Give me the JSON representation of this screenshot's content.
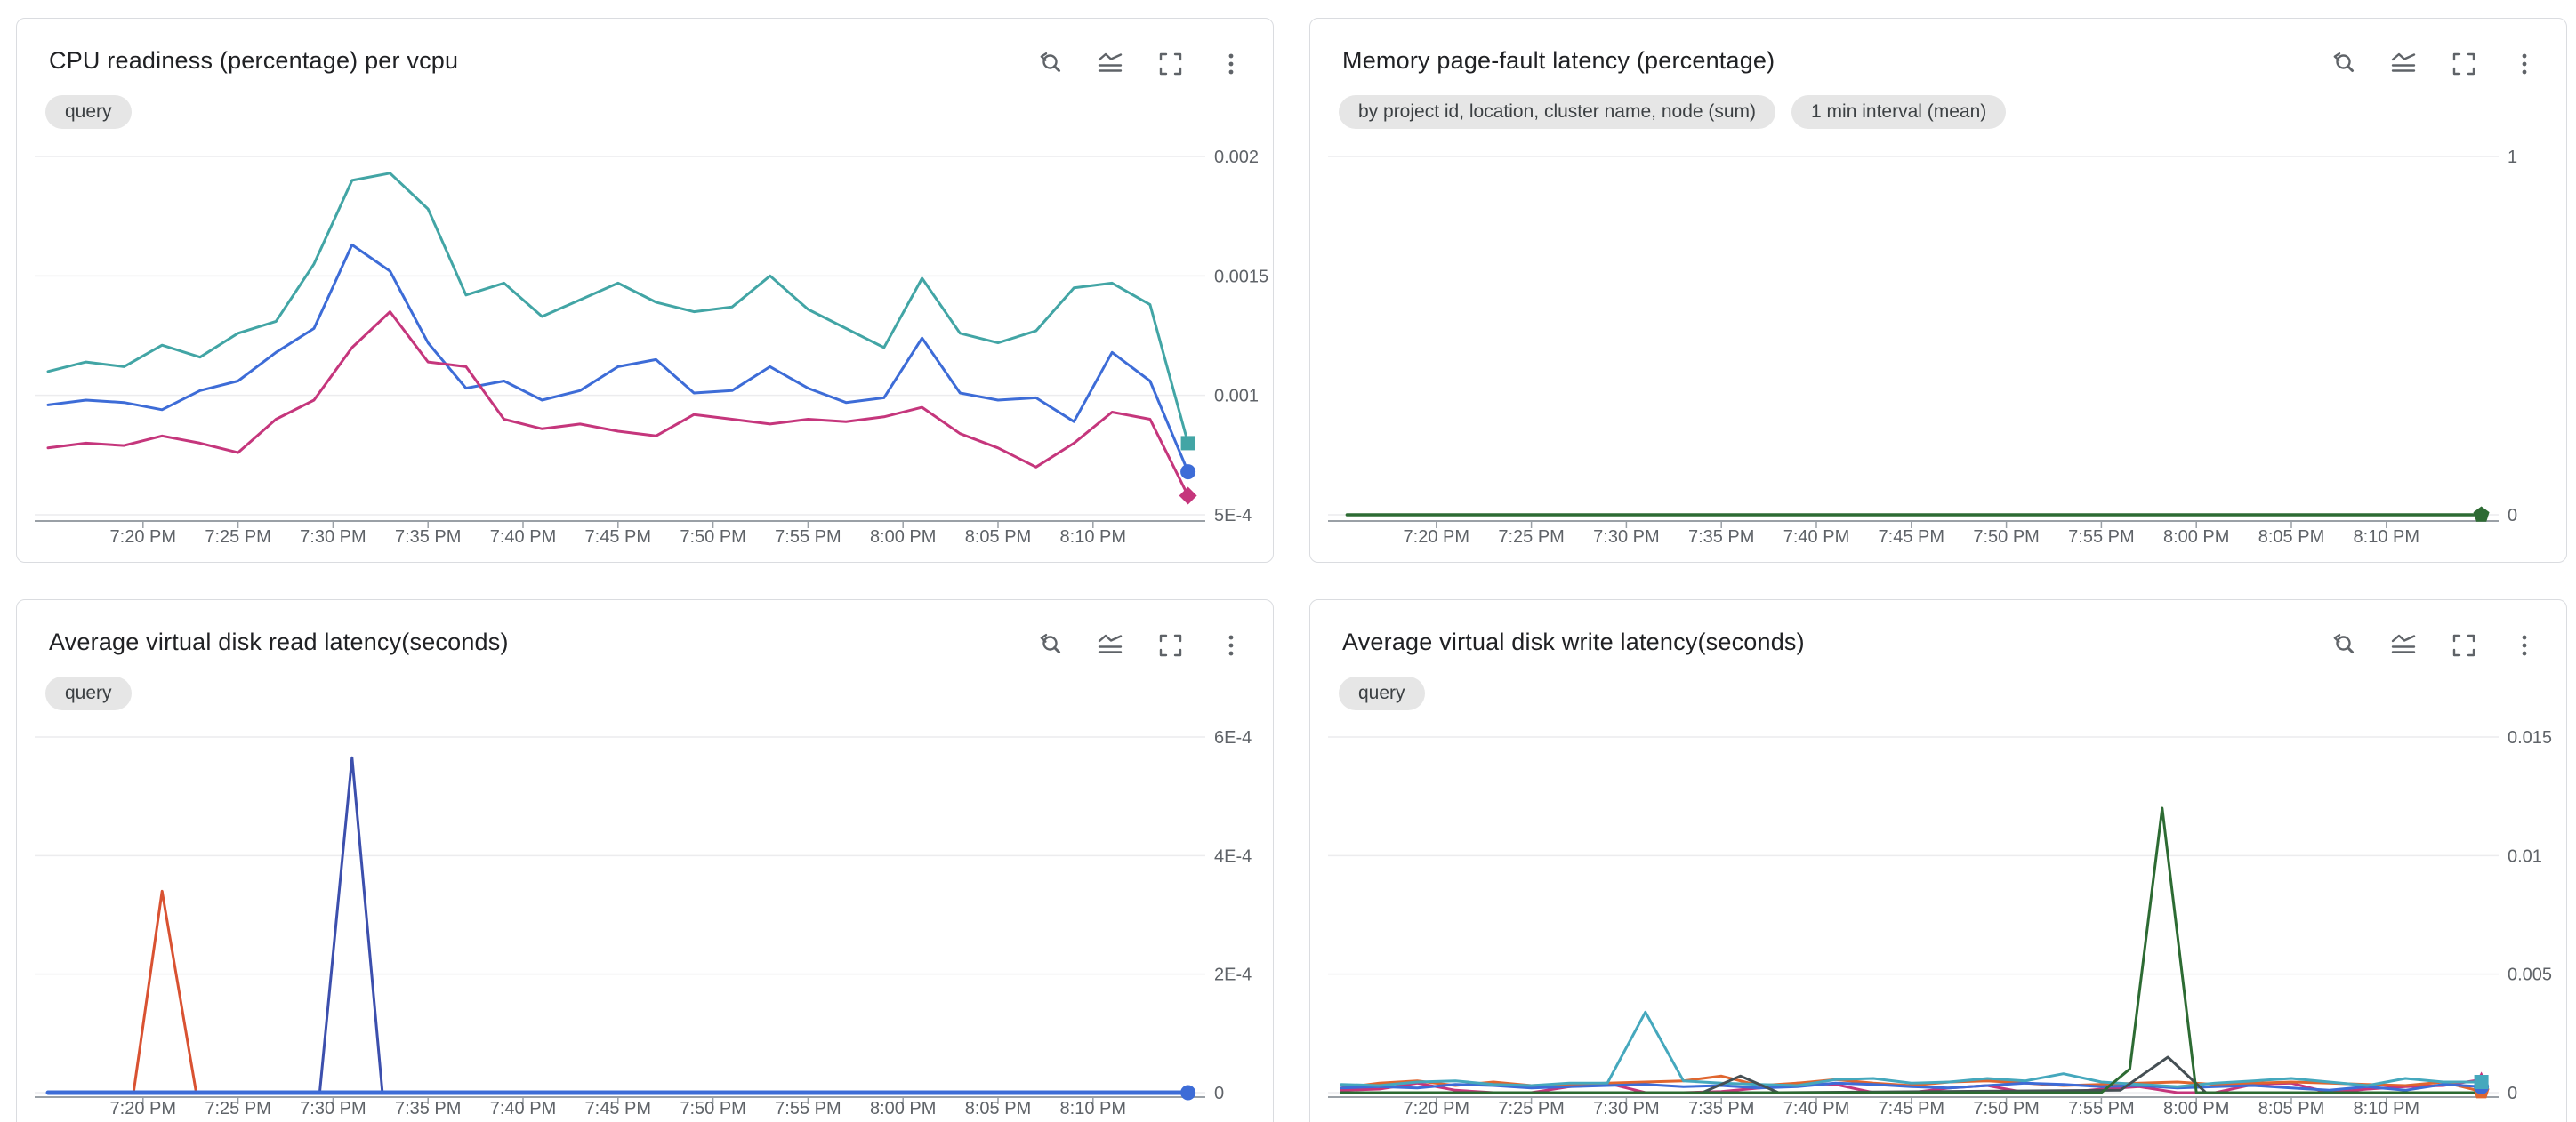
{
  "panels": [
    {
      "title": "CPU readiness (percentage) per vcpu",
      "chips": [
        "query"
      ]
    },
    {
      "title": "Memory page-fault latency (percentage)",
      "chips": [
        "by project id, location, cluster name, node (sum)",
        "1 min interval (mean)"
      ]
    },
    {
      "title": "Average virtual disk read latency(seconds)",
      "chips": [
        "query"
      ]
    },
    {
      "title": "Average virtual disk write latency(seconds)",
      "chips": [
        "query"
      ]
    }
  ],
  "toolbar": {
    "icons": [
      "zoom-reset",
      "chart-type",
      "fullscreen",
      "more-options"
    ]
  },
  "colors": {
    "card_border": "#dadce0",
    "chip_background": "#e6e6e6",
    "axis_text": "#5f6368",
    "gridline": "#ececee",
    "axis_line": "#9aa0a6",
    "title_text": "#202124"
  },
  "chart_data": [
    {
      "type": "line",
      "title": "CPU readiness (percentage) per vcpu",
      "x_tick_labels": [
        "7:20 PM",
        "7:25 PM",
        "7:30 PM",
        "7:35 PM",
        "7:40 PM",
        "7:45 PM",
        "7:50 PM",
        "7:55 PM",
        "8:00 PM",
        "8:05 PM",
        "8:10 PM"
      ],
      "x_tick_minutes": [
        5,
        10,
        15,
        20,
        25,
        30,
        35,
        40,
        45,
        50,
        55
      ],
      "x_range_minutes": [
        0,
        60
      ],
      "y_ticks": [
        {
          "label": "0.002",
          "value": 0.002
        },
        {
          "label": "0.0015",
          "value": 0.0015
        },
        {
          "label": "0.001",
          "value": 0.001
        },
        {
          "label": "5E-4",
          "value": 0.0005
        }
      ],
      "y_grid_top": 0.002,
      "y_grid_bottom": 0.0005,
      "series": [
        {
          "name": "series-1-teal",
          "color": "#42a5a5",
          "width": 3,
          "marker": "square",
          "x_step_minutes": 2,
          "y": [
            0.0011,
            0.00114,
            0.00112,
            0.00121,
            0.00116,
            0.00126,
            0.00131,
            0.00155,
            0.0019,
            0.00193,
            0.00178,
            0.00142,
            0.00147,
            0.00133,
            0.0014,
            0.00147,
            0.00139,
            0.00135,
            0.00137,
            0.0015,
            0.00136,
            0.00128,
            0.0012,
            0.00149,
            0.00126,
            0.00122,
            0.00127,
            0.00145,
            0.00147,
            0.00138,
            0.0008
          ]
        },
        {
          "name": "series-2-blue",
          "color": "#3d6cd7",
          "width": 3,
          "marker": "circle",
          "x_step_minutes": 2,
          "y": [
            0.00096,
            0.00098,
            0.00097,
            0.00094,
            0.00102,
            0.00106,
            0.00118,
            0.00128,
            0.00163,
            0.00152,
            0.00122,
            0.00103,
            0.00106,
            0.00098,
            0.00102,
            0.00112,
            0.00115,
            0.00101,
            0.00102,
            0.00112,
            0.00103,
            0.00097,
            0.00099,
            0.00124,
            0.00101,
            0.00098,
            0.00099,
            0.00089,
            0.00118,
            0.00106,
            0.00068
          ]
        },
        {
          "name": "series-3-magenta",
          "color": "#c5367c",
          "width": 3,
          "marker": "diamond",
          "x_step_minutes": 2,
          "y": [
            0.00078,
            0.0008,
            0.00079,
            0.00083,
            0.0008,
            0.00076,
            0.0009,
            0.00098,
            0.0012,
            0.00135,
            0.00114,
            0.00112,
            0.0009,
            0.00086,
            0.00088,
            0.00085,
            0.00083,
            0.00092,
            0.0009,
            0.00088,
            0.0009,
            0.00089,
            0.00091,
            0.00095,
            0.00084,
            0.00078,
            0.0007,
            0.0008,
            0.00093,
            0.0009,
            0.00058
          ]
        }
      ]
    },
    {
      "type": "line",
      "title": "Memory page-fault latency (percentage)",
      "x_tick_labels": [
        "7:20 PM",
        "7:25 PM",
        "7:30 PM",
        "7:35 PM",
        "7:40 PM",
        "7:45 PM",
        "7:50 PM",
        "7:55 PM",
        "8:00 PM",
        "8:05 PM",
        "8:10 PM"
      ],
      "x_tick_minutes": [
        5,
        10,
        15,
        20,
        25,
        30,
        35,
        40,
        45,
        50,
        55
      ],
      "x_range_minutes": [
        0,
        60
      ],
      "y_ticks": [
        {
          "label": "1",
          "value": 1
        },
        {
          "label": "0",
          "value": 0
        }
      ],
      "y_grid_top": 1,
      "y_grid_bottom": 0,
      "series": [
        {
          "name": "series-1-green",
          "color": "#2d6b33",
          "width": 3.5,
          "marker": "pentagon",
          "x": [
            0.3,
            60
          ],
          "y": [
            0,
            0
          ]
        }
      ]
    },
    {
      "type": "line",
      "title": "Average virtual disk read latency(seconds)",
      "x_tick_labels": [
        "7:20 PM",
        "7:25 PM",
        "7:30 PM",
        "7:35 PM",
        "7:40 PM",
        "7:45 PM",
        "7:50 PM",
        "7:55 PM",
        "8:00 PM",
        "8:05 PM",
        "8:10 PM"
      ],
      "x_tick_minutes": [
        5,
        10,
        15,
        20,
        25,
        30,
        35,
        40,
        45,
        50,
        55
      ],
      "x_range_minutes": [
        0,
        60
      ],
      "y_ticks": [
        {
          "label": "6E-4",
          "value": 0.0006
        },
        {
          "label": "4E-4",
          "value": 0.0004
        },
        {
          "label": "2E-4",
          "value": 0.0002
        },
        {
          "label": "0",
          "value": 0
        }
      ],
      "y_grid_top": 0.0006,
      "y_grid_bottom": 0,
      "series": [
        {
          "name": "spike-orange",
          "color": "#d95232",
          "width": 3,
          "x": [
            0,
            4.5,
            6,
            7.8,
            60
          ],
          "y": [
            0,
            0,
            0.00034,
            0,
            0
          ]
        },
        {
          "name": "spike-indigo",
          "color": "#3c4fad",
          "width": 3,
          "x": [
            0,
            14.3,
            16,
            17.6,
            60
          ],
          "y": [
            0,
            0,
            0.000565,
            0,
            0
          ]
        },
        {
          "name": "baseline-blue",
          "color": "#3d6cd7",
          "width": 5,
          "marker": "circle",
          "x": [
            0,
            60
          ],
          "y": [
            0,
            0
          ]
        }
      ]
    },
    {
      "type": "line",
      "title": "Average virtual disk write latency(seconds)",
      "x_tick_labels": [
        "7:20 PM",
        "7:25 PM",
        "7:30 PM",
        "7:35 PM",
        "7:40 PM",
        "7:45 PM",
        "7:50 PM",
        "7:55 PM",
        "8:00 PM",
        "8:05 PM",
        "8:10 PM"
      ],
      "x_tick_minutes": [
        5,
        10,
        15,
        20,
        25,
        30,
        35,
        40,
        45,
        50,
        55
      ],
      "x_range_minutes": [
        0,
        60
      ],
      "y_ticks": [
        {
          "label": "0.015",
          "value": 0.015
        },
        {
          "label": "0.01",
          "value": 0.01
        },
        {
          "label": "0.005",
          "value": 0.005
        },
        {
          "label": "0",
          "value": 0
        }
      ],
      "y_grid_top": 0.015,
      "y_grid_bottom": 0,
      "series": [
        {
          "name": "series-magenta",
          "color": "#c5367c",
          "width": 3,
          "marker": "triangle",
          "x_step_minutes": 2,
          "y": [
            0.0001,
            0.00015,
            0.0004,
            0.0001,
            0,
            0,
            0.00025,
            0.0004,
            0,
            0,
            5e-05,
            0.0002,
            0.0004,
            0.00035,
            0,
            0,
            0.0002,
            0.0003,
            0,
            0,
            0.00015,
            0.00025,
            0,
            0,
            0.00035,
            0.0004,
            0,
            0.00015,
            0.00025,
            0.0003,
            0.00055
          ]
        },
        {
          "name": "series-orange",
          "color": "#e0662f",
          "width": 3,
          "marker": "pentagon",
          "x_step_minutes": 2,
          "y": [
            0.0002,
            0.0004,
            0.0005,
            0.0003,
            0.00045,
            0.0003,
            0.00035,
            0.0004,
            0.00045,
            0.0005,
            0.0007,
            0.0003,
            0.0004,
            0.00055,
            0.0004,
            0.0003,
            0.00045,
            0.0005,
            0.0004,
            0.0003,
            0.00035,
            0.0004,
            0.00045,
            0.00035,
            0.0004,
            0.00045,
            0.0004,
            0.00035,
            0.0003,
            0.00045,
            5e-05
          ]
        },
        {
          "name": "series-blue",
          "color": "#3d6cd7",
          "width": 3,
          "marker": "circle",
          "x_step_minutes": 2,
          "y": [
            0.0002,
            0.00025,
            0.0002,
            0.00035,
            0.0003,
            0.0002,
            0.00025,
            0.0003,
            0.00035,
            0.00025,
            0.0003,
            0.0002,
            0.00025,
            0.0004,
            0.00035,
            0.00025,
            0.0002,
            0.0003,
            0.0004,
            0.00035,
            0.00025,
            0.0003,
            0.0002,
            0.00025,
            0.0003,
            0.0002,
            0.0001,
            0.00025,
            0.0001,
            0.00035,
            0.00025
          ]
        },
        {
          "name": "series-cyan",
          "color": "#45a8bd",
          "width": 3,
          "marker": "square",
          "x_step_minutes": 2,
          "y": [
            0.00035,
            0.0003,
            0.00045,
            0.0005,
            0.00035,
            0.0003,
            0.0004,
            0.0004,
            0.0034,
            0.0005,
            0.0004,
            0.00035,
            0.0003,
            0.00055,
            0.0006,
            0.0004,
            0.00045,
            0.0006,
            0.0005,
            0.0008,
            0.00045,
            0.00035,
            0.00025,
            0.0004,
            0.0005,
            0.0006,
            0.00045,
            0.0003,
            0.0006,
            0.00045,
            0.00045
          ]
        },
        {
          "name": "series-gray",
          "color": "#454f54",
          "width": 3,
          "x": [
            0,
            19,
            21,
            23,
            41,
            43.5,
            45.5,
            60
          ],
          "y": [
            0,
            0,
            0.0007,
            0,
            0.0001,
            0.0015,
            0,
            0
          ]
        },
        {
          "name": "series-green",
          "color": "#2d6b33",
          "width": 3,
          "x": [
            0,
            40,
            41.5,
            43.2,
            45,
            60
          ],
          "y": [
            0,
            0,
            0.001,
            0.012,
            0,
            0
          ]
        }
      ]
    }
  ]
}
